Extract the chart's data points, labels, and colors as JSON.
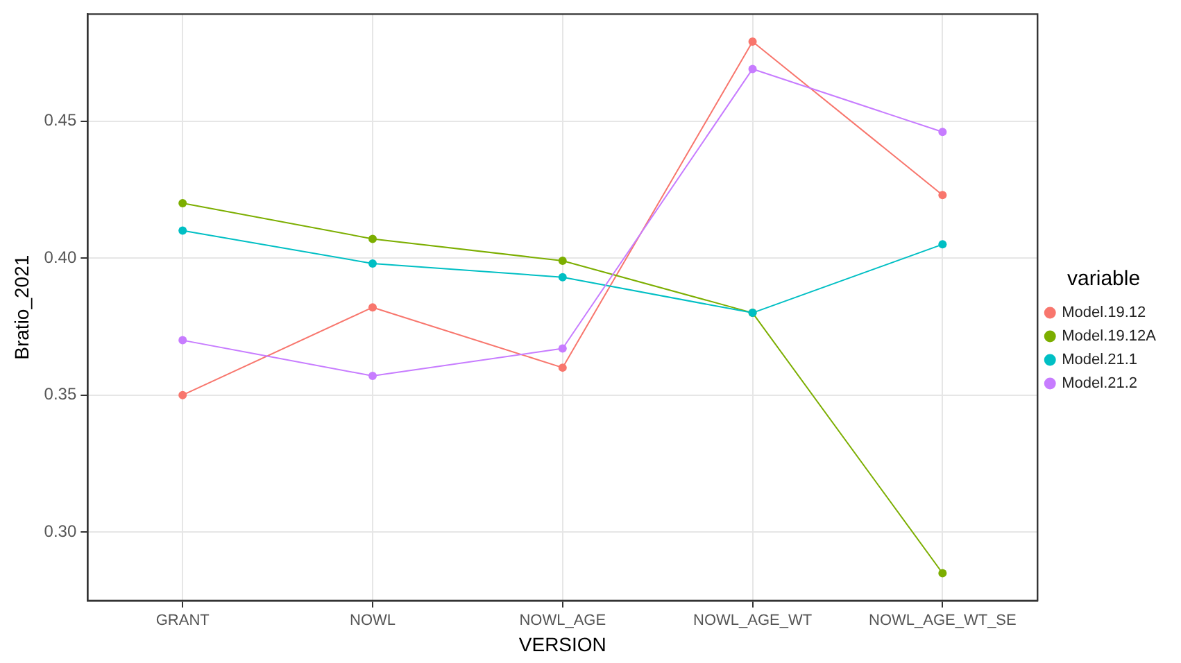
{
  "chart_data": {
    "type": "line",
    "xlabel": "VERSION",
    "ylabel": "Bratio_2021",
    "legend_title": "variable",
    "legend": "right",
    "grid": true,
    "marker": "circle",
    "line_style": "solid",
    "categories": [
      "GRANT",
      "NOWL",
      "NOWL_AGE",
      "NOWL_AGE_WT",
      "NOWL_AGE_WT_SE"
    ],
    "ylim": [
      0.275,
      0.489
    ],
    "yticks": [
      {
        "value": 0.3,
        "label": "0.30"
      },
      {
        "value": 0.35,
        "label": "0.35"
      },
      {
        "value": 0.4,
        "label": "0.40"
      },
      {
        "value": 0.45,
        "label": "0.45"
      }
    ],
    "series": [
      {
        "name": "Model.19.12",
        "color": "#f8766d",
        "values": [
          0.35,
          0.382,
          0.36,
          0.479,
          0.423
        ]
      },
      {
        "name": "Model.19.12A",
        "color": "#7cae00",
        "values": [
          0.42,
          0.407,
          0.399,
          0.38,
          0.285
        ]
      },
      {
        "name": "Model.21.1",
        "color": "#00bfc4",
        "values": [
          0.41,
          0.398,
          0.393,
          0.38,
          0.405
        ]
      },
      {
        "name": "Model.21.2",
        "color": "#c77cff",
        "values": [
          0.37,
          0.357,
          0.367,
          0.469,
          0.446
        ]
      }
    ]
  }
}
